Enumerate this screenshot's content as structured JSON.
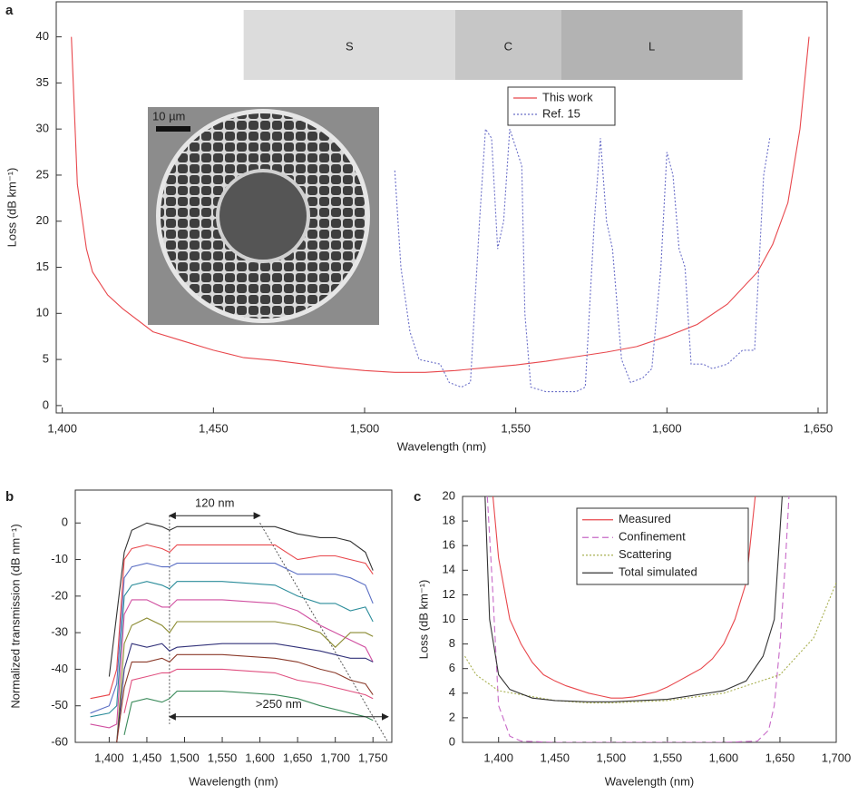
{
  "chart_data": [
    {
      "type": "line",
      "panel": "a",
      "xlabel": "Wavelength (nm)",
      "ylabel": "Loss (dB km⁻¹)",
      "xlim": [
        1398,
        1653
      ],
      "ylim": [
        -0.8,
        43.8
      ],
      "xticks": [
        {
          "value": 1400,
          "label": "1,400"
        },
        {
          "value": 1450,
          "label": "1,450"
        },
        {
          "value": 1500,
          "label": "1,500"
        },
        {
          "value": 1550,
          "label": "1,550"
        },
        {
          "value": 1600,
          "label": "1,600"
        },
        {
          "value": 1650,
          "label": "1,650"
        }
      ],
      "yticks": [
        0,
        5,
        10,
        15,
        20,
        25,
        30,
        35,
        40
      ],
      "bands": [
        {
          "label": "S",
          "range": [
            1460,
            1530
          ],
          "color": "#dcdcdc"
        },
        {
          "label": "C",
          "range": [
            1530,
            1565
          ],
          "color": "#c6c6c6"
        },
        {
          "label": "L",
          "range": [
            1565,
            1625
          ],
          "color": "#b3b3b3"
        }
      ],
      "inset_label": "10 µm",
      "series": [
        {
          "name": "This work",
          "color": "#e8474c",
          "dash": "solid",
          "x": [
            1403,
            1405,
            1408,
            1410,
            1415,
            1420,
            1430,
            1440,
            1450,
            1460,
            1470,
            1480,
            1490,
            1500,
            1510,
            1520,
            1530,
            1540,
            1550,
            1560,
            1570,
            1580,
            1590,
            1600,
            1610,
            1620,
            1630,
            1635,
            1640,
            1644,
            1647
          ],
          "values": [
            40,
            24,
            17,
            14.5,
            12,
            10.5,
            8,
            7,
            6,
            5.2,
            4.9,
            4.5,
            4.1,
            3.8,
            3.6,
            3.6,
            3.8,
            4.1,
            4.4,
            4.8,
            5.3,
            5.8,
            6.4,
            7.5,
            8.8,
            11,
            14.5,
            17.5,
            22,
            30,
            40
          ]
        },
        {
          "name": "Ref. 15",
          "color": "#6b6fc8",
          "dash": "dotted",
          "x": [
            1510,
            1512,
            1515,
            1518,
            1525,
            1528,
            1532,
            1535,
            1538,
            1540,
            1542,
            1544,
            1546,
            1548,
            1550,
            1552,
            1553,
            1555,
            1560,
            1570,
            1573,
            1576,
            1578,
            1580,
            1582,
            1585,
            1588,
            1592,
            1595,
            1598,
            1600,
            1602,
            1604,
            1606,
            1608,
            1612,
            1615,
            1620,
            1625,
            1629,
            1632,
            1634
          ],
          "values": [
            25.5,
            15,
            8,
            5,
            4.5,
            2.5,
            2,
            2.5,
            20,
            30,
            29,
            17,
            20,
            30,
            28,
            26,
            10,
            2,
            1.5,
            1.5,
            2,
            20,
            29,
            20,
            17,
            5,
            2.5,
            3,
            4,
            15,
            27.5,
            25,
            17,
            15,
            4.5,
            4.5,
            4,
            4.5,
            6,
            6,
            25,
            29
          ]
        }
      ]
    },
    {
      "type": "line",
      "panel": "b",
      "xlabel": "Wavelength (nm)",
      "ylabel": "Normalized transmission (dB nm⁻¹)",
      "xlim": [
        1355,
        1775
      ],
      "ylim": [
        -60,
        9
      ],
      "xticks": [
        {
          "value": 1400,
          "label": "1,400"
        },
        {
          "value": 1450,
          "label": "1,450"
        },
        {
          "value": 1500,
          "label": "1,500"
        },
        {
          "value": 1550,
          "label": "1,550"
        },
        {
          "value": 1600,
          "label": "1,600"
        },
        {
          "value": 1650,
          "label": "1,650"
        },
        {
          "value": 1700,
          "label": "1,700"
        },
        {
          "value": 1750,
          "label": "1,750"
        }
      ],
      "yticks": [
        -60,
        -50,
        -40,
        -30,
        -20,
        -10,
        0
      ],
      "x": [
        1375,
        1400,
        1410,
        1420,
        1430,
        1450,
        1470,
        1480,
        1490,
        1550,
        1620,
        1650,
        1680,
        1700,
        1720,
        1740,
        1750
      ],
      "series": [
        {
          "color": "#333333",
          "values": [
            null,
            -42,
            -25,
            -8,
            -2,
            0,
            -1,
            -2,
            -1,
            -1,
            -1,
            -3,
            -4,
            -4,
            -5,
            -8,
            -13
          ]
        },
        {
          "color": "#e8474c",
          "values": [
            -48,
            -47,
            -40,
            -10,
            -7,
            -6,
            -7,
            -8,
            -6,
            -6,
            -6,
            -10,
            -9,
            -9,
            -10,
            -11,
            -14
          ]
        },
        {
          "color": "#5b6fc4",
          "values": [
            -52,
            -50,
            -44,
            -15,
            -12,
            -11,
            -12,
            -12,
            -11,
            -11,
            -11,
            -14,
            -14,
            -14,
            -15,
            -17,
            -22
          ]
        },
        {
          "color": "#2b8c9a",
          "values": [
            -53,
            -52,
            -50,
            -20,
            -17,
            -16,
            -17,
            -18,
            -16,
            -16,
            -17,
            -20,
            -22,
            -22,
            -24,
            -23,
            -27
          ]
        },
        {
          "color": "#d04fa0",
          "values": [
            -55,
            -56,
            -55,
            -25,
            -21,
            -21,
            -23,
            -23,
            -21,
            -21,
            -22,
            -24,
            -28,
            -30,
            -32,
            -34,
            -38
          ]
        },
        {
          "color": "#8a8a30",
          "values": [
            null,
            null,
            -60,
            -33,
            -28,
            -26,
            -28,
            -30,
            -27,
            -27,
            -27,
            -28,
            -30,
            -34,
            -30,
            -30,
            -31
          ]
        },
        {
          "color": "#33337a",
          "values": [
            null,
            null,
            -60,
            -40,
            -33,
            -34,
            -33,
            -35,
            -34,
            -33,
            -33,
            -34,
            -35,
            -36,
            -37,
            -37,
            -38
          ]
        },
        {
          "color": "#8b3a2a",
          "values": [
            null,
            null,
            -60,
            -45,
            -38,
            -38,
            -37,
            -38,
            -36,
            -36,
            -37,
            -38,
            -40,
            -41,
            -43,
            -44,
            -47
          ]
        },
        {
          "color": "#e05080",
          "values": [
            null,
            null,
            null,
            -52,
            -43,
            -42,
            -41,
            -41,
            -40,
            -40,
            -41,
            -43,
            -44,
            -45,
            -46,
            -47,
            -48
          ]
        },
        {
          "color": "#3a8a5a",
          "values": [
            null,
            null,
            null,
            -58,
            -49,
            -48,
            -49,
            -48,
            -46,
            -46,
            -47,
            -48,
            -50,
            -51,
            -52,
            -53,
            -54
          ]
        }
      ],
      "guides": [
        {
          "x": [
            1480,
            1480
          ],
          "y": [
            2,
            -55
          ]
        },
        {
          "x": [
            1600,
            1770
          ],
          "y": [
            0,
            -60
          ]
        }
      ],
      "annotations": [
        {
          "text": "120 nm",
          "x": [
            1480,
            1600
          ],
          "y": 2
        },
        {
          "text": ">250 nm",
          "x": [
            1480,
            1770
          ],
          "y": -53
        }
      ]
    },
    {
      "type": "line",
      "panel": "c",
      "xlabel": "Wavelength (nm)",
      "ylabel": "Loss (dB km⁻¹)",
      "xlim": [
        1368,
        1700
      ],
      "ylim": [
        0,
        20
      ],
      "xticks": [
        {
          "value": 1400,
          "label": "1,400"
        },
        {
          "value": 1450,
          "label": "1,450"
        },
        {
          "value": 1500,
          "label": "1,500"
        },
        {
          "value": 1550,
          "label": "1,550"
        },
        {
          "value": 1600,
          "label": "1,600"
        },
        {
          "value": 1650,
          "label": "1,650"
        },
        {
          "value": 1700,
          "label": "1,700"
        }
      ],
      "yticks": [
        0,
        2,
        4,
        6,
        8,
        10,
        12,
        14,
        16,
        18,
        20
      ],
      "series": [
        {
          "name": "Measured",
          "color": "#e8474c",
          "dash": "solid",
          "x": [
            1395,
            1400,
            1410,
            1420,
            1430,
            1440,
            1450,
            1460,
            1470,
            1480,
            1490,
            1500,
            1510,
            1520,
            1530,
            1540,
            1550,
            1560,
            1570,
            1580,
            1590,
            1600,
            1610,
            1620,
            1628
          ],
          "values": [
            20,
            15,
            10,
            8,
            6.5,
            5.5,
            5,
            4.6,
            4.3,
            4,
            3.8,
            3.6,
            3.6,
            3.7,
            3.9,
            4.1,
            4.5,
            5,
            5.5,
            6,
            6.8,
            8,
            10,
            13,
            20
          ]
        },
        {
          "name": "Confinement",
          "color": "#c86ac8",
          "dash": "dashed",
          "x": [
            1390,
            1395,
            1400,
            1410,
            1420,
            1450,
            1500,
            1600,
            1630,
            1640,
            1645,
            1650,
            1655,
            1658
          ],
          "values": [
            20,
            12,
            3,
            0.5,
            0.1,
            0,
            0,
            0,
            0.1,
            1,
            3,
            8,
            15,
            20
          ]
        },
        {
          "name": "Scattering",
          "color": "#a8b050",
          "dash": "dotted",
          "x": [
            1370,
            1380,
            1400,
            1450,
            1480,
            1500,
            1550,
            1600,
            1650,
            1680,
            1700
          ],
          "values": [
            7,
            5.5,
            4.2,
            3.4,
            3.2,
            3.2,
            3.4,
            4,
            5.5,
            8.5,
            13
          ]
        },
        {
          "name": "Total simulated",
          "color": "#333333",
          "dash": "solid",
          "x": [
            1388,
            1392,
            1400,
            1410,
            1430,
            1450,
            1480,
            1500,
            1550,
            1600,
            1620,
            1635,
            1645,
            1652
          ],
          "values": [
            20,
            10,
            5.5,
            4.3,
            3.6,
            3.4,
            3.3,
            3.3,
            3.5,
            4.2,
            5,
            7,
            10,
            20
          ]
        }
      ]
    }
  ]
}
